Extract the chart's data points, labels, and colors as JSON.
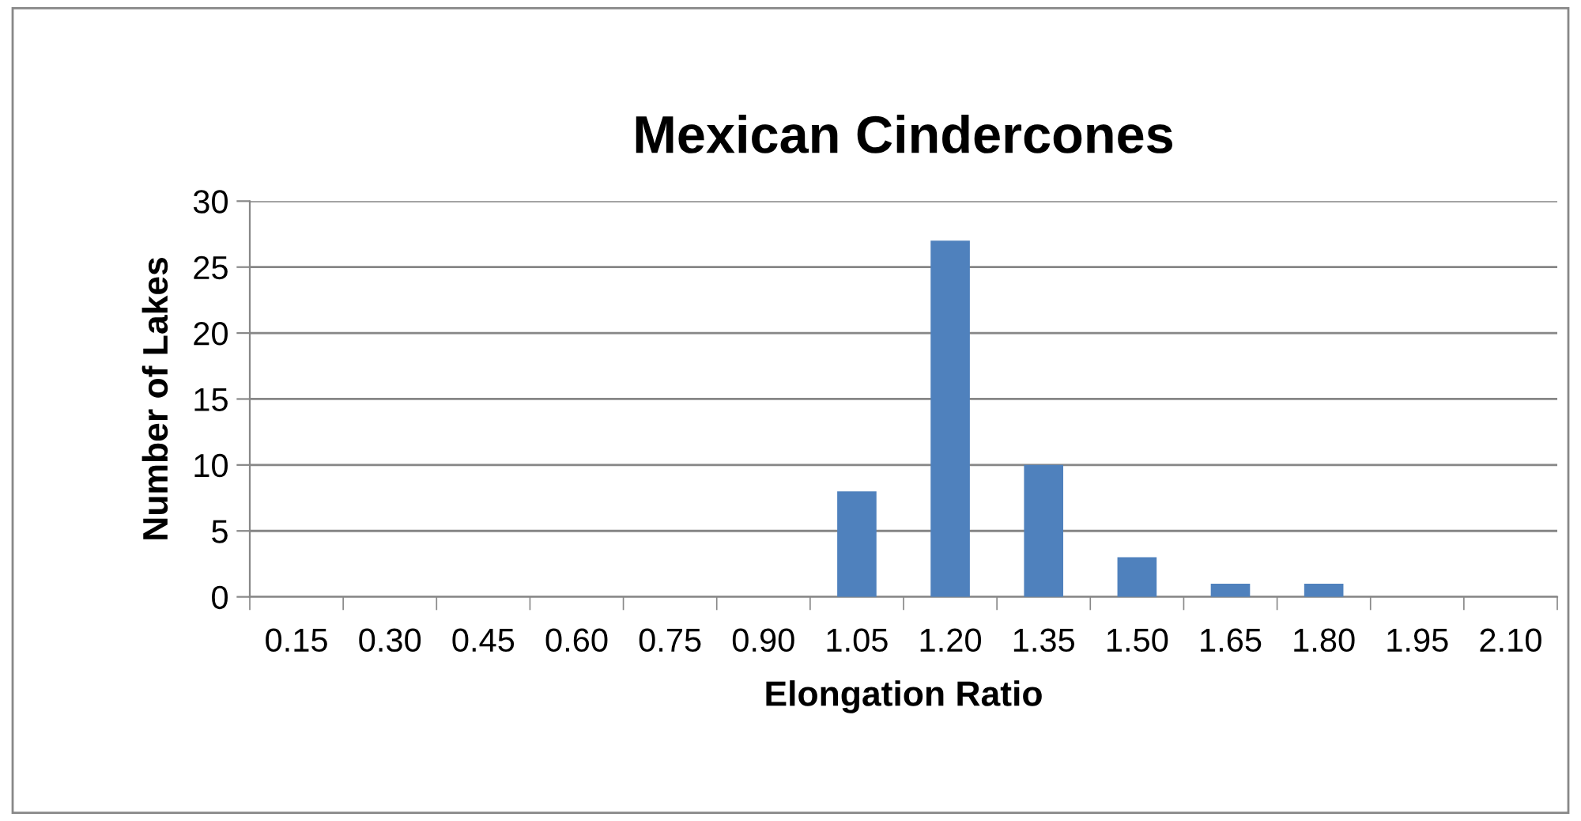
{
  "chart_data": {
    "type": "bar",
    "title": "Mexican Cindercones",
    "xlabel": "Elongation Ratio",
    "ylabel": "Number of Lakes",
    "categories": [
      "0.15",
      "0.30",
      "0.45",
      "0.60",
      "0.75",
      "0.90",
      "1.05",
      "1.20",
      "1.35",
      "1.50",
      "1.65",
      "1.80",
      "1.95",
      "2.10"
    ],
    "values": [
      0,
      0,
      0,
      0,
      0,
      0,
      8,
      27,
      10,
      3,
      1,
      1,
      0,
      0
    ],
    "color": "#4f81bd",
    "ylim": [
      0,
      30
    ],
    "yticks": [
      0,
      5,
      10,
      15,
      20,
      25,
      30
    ],
    "grid": "y",
    "legend": false
  }
}
